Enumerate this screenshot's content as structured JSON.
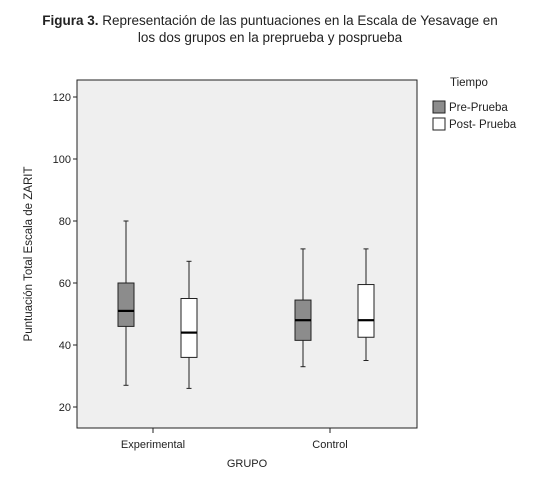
{
  "caption": {
    "label": "Figura 3.",
    "line1": "Representación de las puntuaciones en la Escala de Yesavage en",
    "line2": "los dos grupos en la preprueba y posprueba"
  },
  "chart_data": {
    "type": "box",
    "xlabel": "GRUPO",
    "ylabel": "Puntuación Total Escala de ZARIT",
    "ylim": [
      15,
      125
    ],
    "yticks": [
      20,
      40,
      60,
      80,
      100,
      120
    ],
    "categories": [
      "Experimental",
      "Control"
    ],
    "legend": {
      "title": "Tiempo",
      "position": "top-right"
    },
    "series": [
      {
        "name": "Pre-Prueba",
        "color": "#8c8c8c",
        "boxes": [
          {
            "min": 27,
            "q1": 46,
            "median": 51,
            "q3": 60,
            "max": 80
          },
          {
            "min": 33,
            "q1": 41.5,
            "median": 48,
            "q3": 54.5,
            "max": 71
          }
        ]
      },
      {
        "name": "Post- Prueba",
        "color": "#ffffff",
        "boxes": [
          {
            "min": 26,
            "q1": 36,
            "median": 44,
            "q3": 55,
            "max": 67
          },
          {
            "min": 35,
            "q1": 42.5,
            "median": 48,
            "q3": 59.5,
            "max": 71
          }
        ]
      }
    ],
    "grid": false,
    "background": "#efefef"
  }
}
